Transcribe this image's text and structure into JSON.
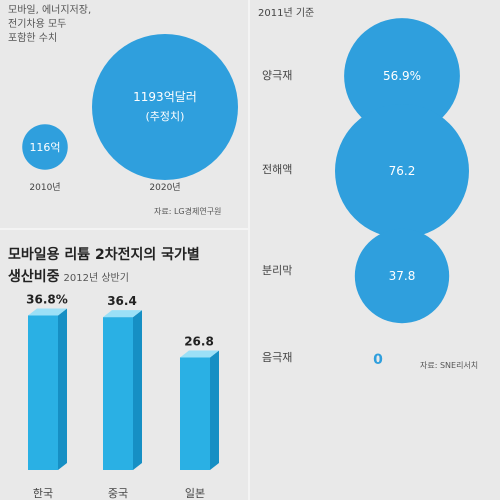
{
  "chart_data": [
    {
      "type": "bubble",
      "note": [
        "모바일, 에너지저장,",
        "전기차용 모두",
        "포함한 수치"
      ],
      "source": "자료: LG경제연구원",
      "points": [
        {
          "x": "2010년",
          "label": "116억",
          "value": 116
        },
        {
          "x": "2020년",
          "label": "1193억달러",
          "sublabel": "(추정치)",
          "value": 1193
        }
      ]
    },
    {
      "type": "bubble",
      "subtitle": "2011년 기준",
      "source": "자료: SNE리서치",
      "points": [
        {
          "category": "양극재",
          "label": "56.9%",
          "value": 56.9
        },
        {
          "category": "전해액",
          "label": "76.2",
          "value": 76.2
        },
        {
          "category": "분리막",
          "label": "37.8",
          "value": 37.8
        },
        {
          "category": "음극재",
          "label": "0",
          "value": 0
        }
      ]
    },
    {
      "type": "bar",
      "title": "모바일용 리튬 2차전지의 국가별 생산비중",
      "title_lines": [
        "모바일용 리튬 2차전지의 국가별",
        "생산비중"
      ],
      "subtitle": "2012년 상반기",
      "categories": [
        "한국",
        "중국",
        "일본"
      ],
      "values": [
        36.8,
        36.4,
        26.8
      ],
      "labels": [
        "36.8%",
        "36.4",
        "26.8"
      ]
    }
  ],
  "colors": {
    "bubble": "#2f9fdd",
    "bar_front": "#2ab0e4",
    "bar_side": "#168fc4",
    "bar_top": "#9be0f7"
  }
}
